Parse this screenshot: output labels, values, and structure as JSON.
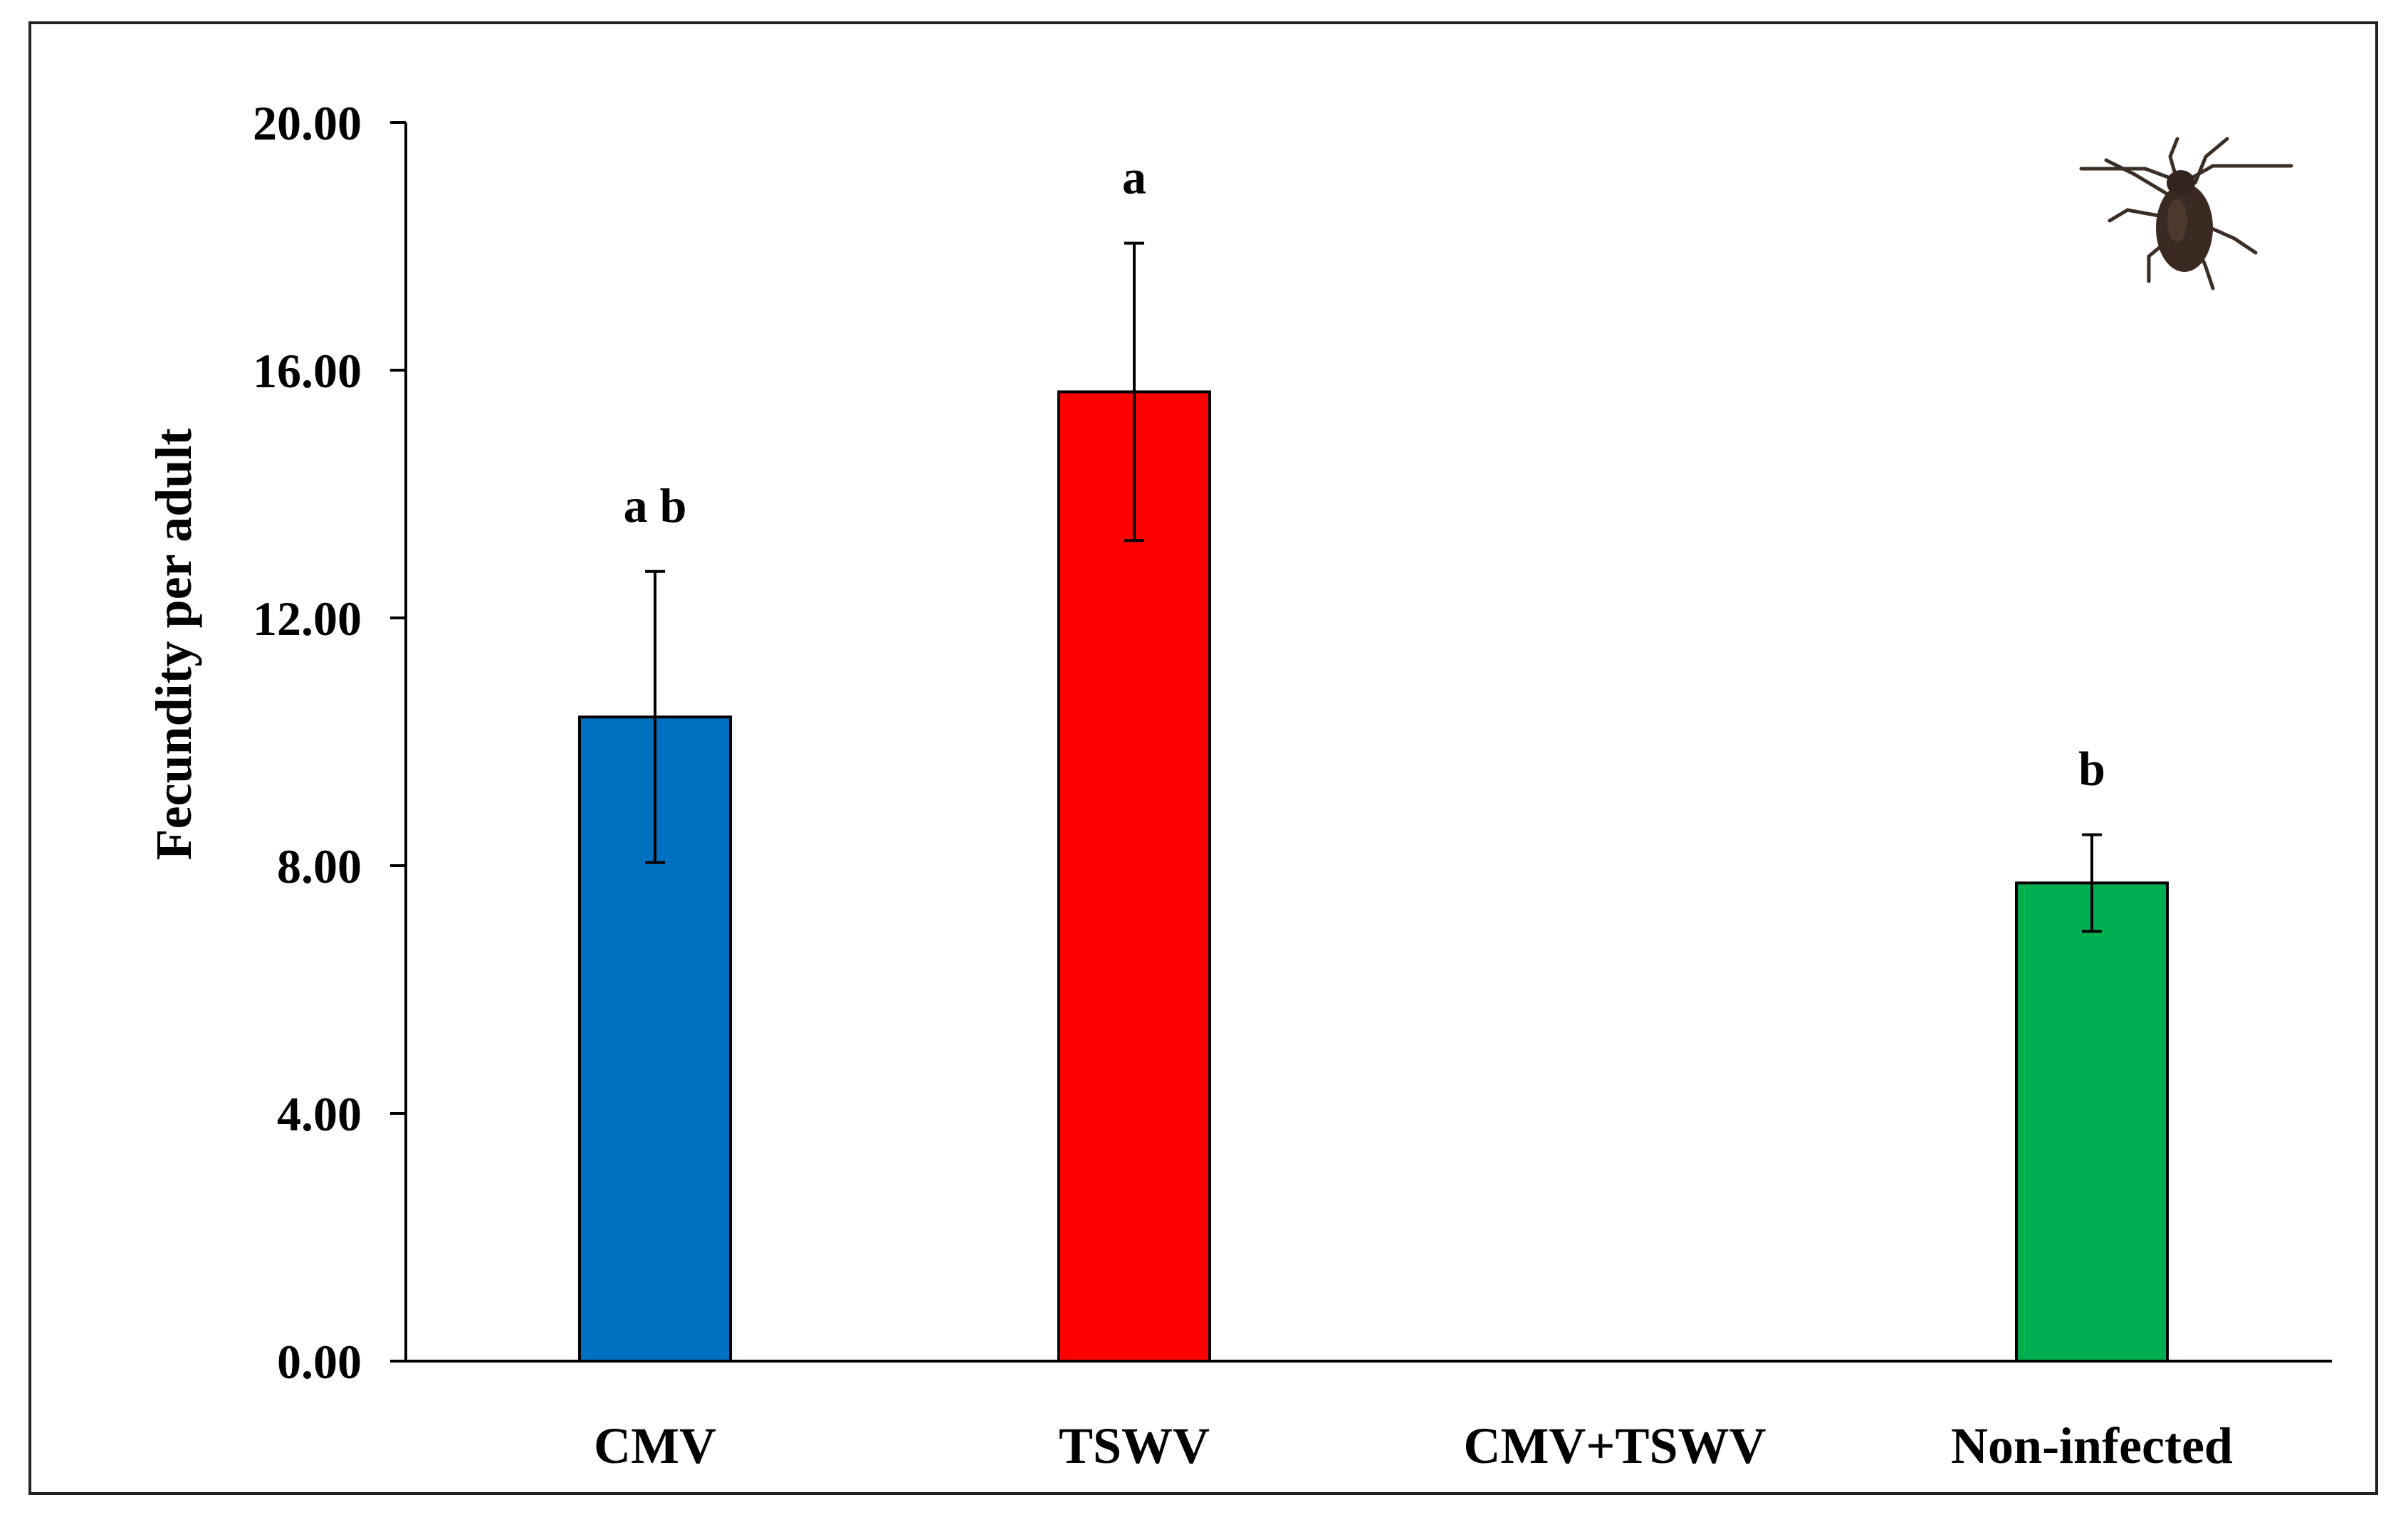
{
  "chart_data": {
    "type": "bar",
    "categories": [
      "CMV",
      "TSWV",
      "CMV+TSWV",
      "Non-infected"
    ],
    "values": [
      10.4,
      15.65,
      0,
      7.72
    ],
    "errors": [
      2.35,
      2.4,
      0,
      0.78
    ],
    "significance_letters": [
      "a b",
      "a",
      "",
      "b"
    ],
    "colors": [
      "#0070C0",
      "#FF0000",
      "#FFFFFF",
      "#00B050"
    ],
    "ylabel": "Fecundity per adult",
    "xlabel": "",
    "ylim": [
      0,
      20
    ],
    "yticks": [
      "0.00",
      "4.00",
      "8.00",
      "12.00",
      "16.00",
      "20.00"
    ],
    "grid": false,
    "legend": "none",
    "decoration_icon": "aphid-icon"
  }
}
